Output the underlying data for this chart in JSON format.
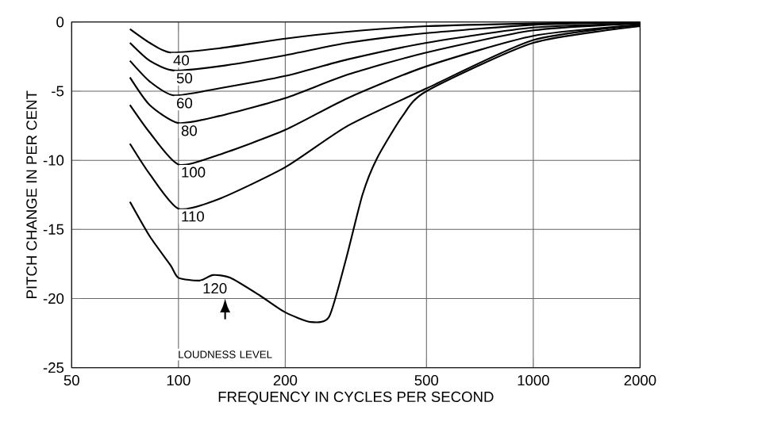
{
  "chart_data": {
    "type": "line",
    "xlabel": "FREQUENCY IN CYCLES PER SECOND",
    "ylabel": "PITCH CHANGE IN PER CENT",
    "log": "x",
    "xlim": [
      50,
      2000
    ],
    "ylim": [
      -25,
      0
    ],
    "xticks": [
      50,
      100,
      200,
      500,
      1000,
      2000
    ],
    "yticks": [
      0,
      -5,
      -10,
      -15,
      -20,
      -25
    ],
    "grid": true,
    "marker": "none",
    "line_style": "solid",
    "annotations": [
      "LOUDNESS LEVEL"
    ],
    "series": [
      {
        "name": "40",
        "color": "#000000",
        "x": [
          73,
          83,
          95,
          130,
          200,
          300,
          500,
          1000,
          2000
        ],
        "values": [
          -0.5,
          -1.5,
          -2.2,
          -1.9,
          -1.2,
          -0.7,
          -0.3,
          -0.1,
          0
        ]
      },
      {
        "name": "50",
        "color": "#000000",
        "x": [
          73,
          83,
          97,
          130,
          200,
          300,
          500,
          1000,
          2000
        ],
        "values": [
          -1.5,
          -2.8,
          -3.5,
          -3.2,
          -2.4,
          -1.5,
          -0.8,
          -0.2,
          0
        ]
      },
      {
        "name": "60",
        "color": "#000000",
        "x": [
          73,
          83,
          97,
          130,
          200,
          300,
          500,
          1000,
          2000
        ],
        "values": [
          -2.8,
          -4.3,
          -5.3,
          -4.8,
          -3.9,
          -2.7,
          -1.5,
          -0.4,
          -0.1
        ]
      },
      {
        "name": "80",
        "color": "#000000",
        "x": [
          73,
          83,
          100,
          130,
          200,
          300,
          500,
          1000,
          2000
        ],
        "values": [
          -4,
          -6,
          -7.3,
          -6.8,
          -5.5,
          -3.8,
          -2.2,
          -0.6,
          -0.1
        ]
      },
      {
        "name": "100",
        "color": "#000000",
        "x": [
          73,
          83,
          100,
          130,
          200,
          300,
          500,
          1000,
          2000
        ],
        "values": [
          -6,
          -8,
          -10.3,
          -9.6,
          -7.8,
          -5.5,
          -3.2,
          -1,
          -0.2
        ]
      },
      {
        "name": "110",
        "color": "#000000",
        "x": [
          73,
          83,
          100,
          130,
          200,
          300,
          500,
          1000,
          2000
        ],
        "values": [
          -8.8,
          -11,
          -13.5,
          -12.8,
          -10.5,
          -7.5,
          -4.8,
          -1.3,
          -0.2
        ]
      },
      {
        "name": "120",
        "color": "#000000",
        "x": [
          73,
          83,
          95,
          100,
          115,
          125,
          140,
          170,
          200,
          236,
          266,
          297,
          330,
          362,
          428,
          500,
          1000,
          2000
        ],
        "values": [
          -13,
          -15.5,
          -17.6,
          -18.5,
          -18.7,
          -18.3,
          -18.5,
          -19.8,
          -21,
          -21.7,
          -21.3,
          -17.1,
          -12.5,
          -9.9,
          -6.8,
          -5,
          -1.5,
          -0.3
        ]
      }
    ]
  }
}
